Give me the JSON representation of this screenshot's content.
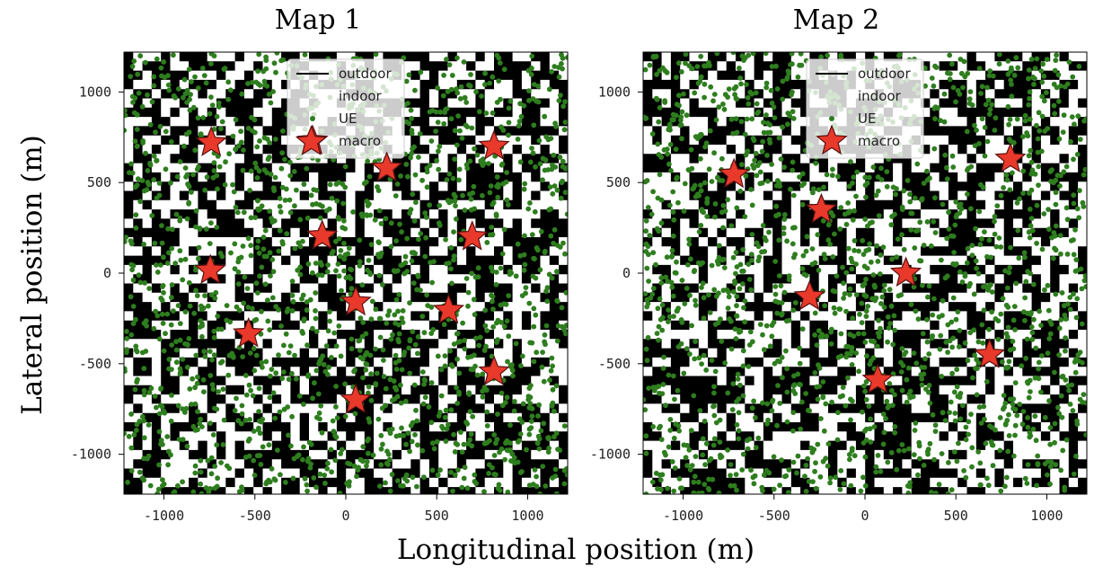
{
  "figure": {
    "xlabel": "Longitudinal position (m)",
    "ylabel": "Lateral position (m)"
  },
  "colors": {
    "building": "#000000",
    "street": "#ffffff",
    "ue": "#2e7d1e",
    "macro_fill": "#e8392b",
    "macro_edge": "#5a1010",
    "legend_bg": "#ffffff"
  },
  "chart_data": [
    {
      "type": "scatter",
      "title": "Map 1",
      "xlim": [
        -1220,
        1220
      ],
      "ylim": [
        -1220,
        1220
      ],
      "xticks": [
        -1000,
        -500,
        0,
        500,
        1000
      ],
      "yticks": [
        -1000,
        -500,
        0,
        500,
        1000
      ],
      "grid": false,
      "legend_placement": "upper-center",
      "legend": [
        {
          "label": "outdoor",
          "marker": "line"
        },
        {
          "label": "indoor",
          "marker": "none"
        },
        {
          "label": "UE",
          "marker": "dot"
        },
        {
          "label": "macro",
          "marker": "star"
        }
      ],
      "series": [
        {
          "name": "macro",
          "points": [
            [
              -740,
              720
            ],
            [
              -190,
              725
            ],
            [
              225,
              580
            ],
            [
              815,
              700
            ],
            [
              -130,
              205
            ],
            [
              695,
              200
            ],
            [
              -745,
              15
            ],
            [
              55,
              -160
            ],
            [
              565,
              -205
            ],
            [
              -535,
              -335
            ],
            [
              815,
              -545
            ],
            [
              55,
              -700
            ]
          ]
        }
      ],
      "background": "random building/street grid with scattered UE points",
      "seed": 7
    },
    {
      "type": "scatter",
      "title": "Map 2",
      "xlim": [
        -1220,
        1220
      ],
      "ylim": [
        -1220,
        1220
      ],
      "xticks": [
        -1000,
        -500,
        0,
        500,
        1000
      ],
      "yticks": [
        -1000,
        -500,
        0,
        500,
        1000
      ],
      "grid": false,
      "legend_placement": "upper-center",
      "legend": [
        {
          "label": "outdoor",
          "marker": "line"
        },
        {
          "label": "indoor",
          "marker": "none"
        },
        {
          "label": "UE",
          "marker": "dot"
        },
        {
          "label": "macro",
          "marker": "star"
        }
      ],
      "series": [
        {
          "name": "macro",
          "points": [
            [
              -720,
              545
            ],
            [
              800,
              630
            ],
            [
              -240,
              350
            ],
            [
              225,
              0
            ],
            [
              -305,
              -130
            ],
            [
              685,
              -450
            ],
            [
              70,
              -590
            ]
          ]
        }
      ],
      "background": "random building/street grid with scattered UE points",
      "seed": 19
    }
  ]
}
